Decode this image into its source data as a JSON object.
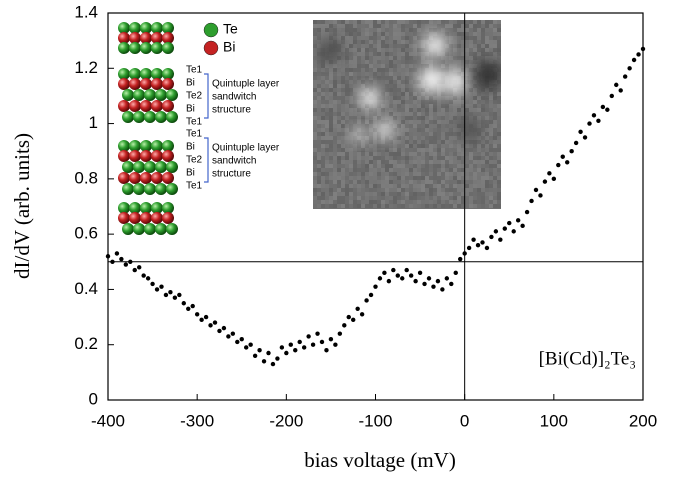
{
  "chart_data": {
    "type": "scatter",
    "xlabel": "bias voltage (mV)",
    "ylabel": "dI/dV (arb. units)",
    "annotation": "[Bi(Cd)]₂Te₃",
    "xlim": [
      -400,
      200
    ],
    "ylim": [
      0,
      1.4
    ],
    "xticks": [
      -400,
      -300,
      -200,
      -100,
      0,
      100,
      200
    ],
    "yticks": [
      0,
      0.2,
      0.4,
      0.6,
      0.8,
      1,
      1.2,
      1.4
    ],
    "hline": 0.5,
    "vline": 0,
    "color": "#000000",
    "x": [
      -400,
      -395,
      -390,
      -385,
      -380,
      -375,
      -370,
      -365,
      -360,
      -355,
      -350,
      -345,
      -340,
      -335,
      -330,
      -325,
      -320,
      -315,
      -310,
      -305,
      -300,
      -295,
      -290,
      -285,
      -280,
      -275,
      -270,
      -265,
      -260,
      -255,
      -250,
      -245,
      -240,
      -235,
      -230,
      -225,
      -220,
      -215,
      -210,
      -205,
      -200,
      -195,
      -190,
      -185,
      -180,
      -175,
      -170,
      -165,
      -160,
      -155,
      -150,
      -145,
      -140,
      -135,
      -130,
      -125,
      -120,
      -115,
      -110,
      -105,
      -100,
      -95,
      -90,
      -85,
      -80,
      -75,
      -70,
      -65,
      -60,
      -55,
      -50,
      -45,
      -40,
      -35,
      -30,
      -25,
      -20,
      -15,
      -10,
      -5,
      0,
      5,
      10,
      15,
      20,
      25,
      30,
      35,
      40,
      45,
      50,
      55,
      60,
      65,
      70,
      75,
      80,
      85,
      90,
      95,
      100,
      105,
      110,
      115,
      120,
      125,
      130,
      135,
      140,
      145,
      150,
      155,
      160,
      165,
      170,
      175,
      180,
      185,
      190,
      195,
      200
    ],
    "values": [
      0.52,
      0.5,
      0.53,
      0.51,
      0.49,
      0.5,
      0.47,
      0.48,
      0.45,
      0.44,
      0.42,
      0.4,
      0.41,
      0.38,
      0.39,
      0.37,
      0.38,
      0.35,
      0.33,
      0.34,
      0.31,
      0.29,
      0.3,
      0.27,
      0.28,
      0.25,
      0.26,
      0.23,
      0.24,
      0.21,
      0.22,
      0.19,
      0.2,
      0.16,
      0.18,
      0.14,
      0.17,
      0.13,
      0.15,
      0.19,
      0.17,
      0.2,
      0.18,
      0.21,
      0.19,
      0.23,
      0.2,
      0.24,
      0.21,
      0.18,
      0.22,
      0.2,
      0.24,
      0.27,
      0.3,
      0.29,
      0.33,
      0.31,
      0.36,
      0.38,
      0.41,
      0.44,
      0.46,
      0.43,
      0.47,
      0.45,
      0.44,
      0.47,
      0.45,
      0.43,
      0.46,
      0.42,
      0.44,
      0.41,
      0.43,
      0.4,
      0.44,
      0.42,
      0.46,
      0.51,
      0.53,
      0.55,
      0.58,
      0.56,
      0.57,
      0.55,
      0.59,
      0.61,
      0.58,
      0.62,
      0.64,
      0.61,
      0.65,
      0.63,
      0.68,
      0.72,
      0.76,
      0.74,
      0.79,
      0.82,
      0.8,
      0.85,
      0.88,
      0.86,
      0.9,
      0.93,
      0.97,
      0.95,
      1.0,
      1.03,
      1.01,
      1.06,
      1.05,
      1.1,
      1.14,
      1.12,
      1.17,
      1.2,
      1.23,
      1.25,
      1.27
    ],
    "inset": {
      "legend": [
        {
          "name": "Te",
          "color": "#2e9e2e"
        },
        {
          "name": "Bi",
          "color": "#c42222"
        }
      ],
      "layer_groups": [
        {
          "labels": [
            "Te1",
            "Bi",
            "Te2",
            "Bi",
            "Te1"
          ],
          "caption": [
            "Quintuple layer",
            "sandwitch",
            "structure"
          ]
        },
        {
          "labels": [
            "Te1",
            "Bi",
            "Te2",
            "Bi",
            "Te1"
          ],
          "caption": [
            "Quintuple layer",
            "sandwitch",
            "structure"
          ]
        }
      ]
    }
  }
}
